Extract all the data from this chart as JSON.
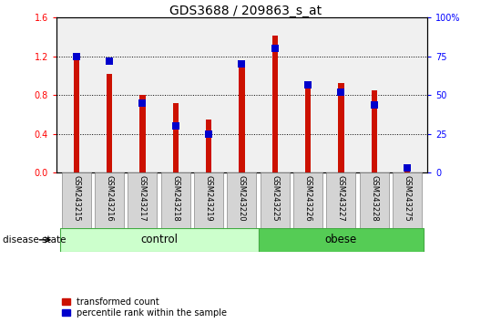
{
  "title": "GDS3688 / 209863_s_at",
  "samples": [
    "GSM243215",
    "GSM243216",
    "GSM243217",
    "GSM243218",
    "GSM243219",
    "GSM243220",
    "GSM243225",
    "GSM243226",
    "GSM243227",
    "GSM243228",
    "GSM243275"
  ],
  "transformed_count": [
    1.22,
    1.02,
    0.8,
    0.72,
    0.55,
    1.12,
    1.42,
    0.95,
    0.93,
    0.85,
    0.02
  ],
  "percentile_rank": [
    75,
    72,
    45,
    30,
    25,
    70,
    80,
    57,
    52,
    44,
    3
  ],
  "groups": [
    {
      "label": "control",
      "start": 0,
      "end": 6,
      "color": "#ccffcc",
      "edge": "#44aa44"
    },
    {
      "label": "obese",
      "start": 6,
      "end": 11,
      "color": "#55cc55",
      "edge": "#44aa44"
    }
  ],
  "bar_color_red": "#cc1100",
  "bar_color_blue": "#0000cc",
  "ylim_left": [
    0,
    1.6
  ],
  "ylim_right": [
    0,
    100
  ],
  "yticks_left": [
    0,
    0.4,
    0.8,
    1.2,
    1.6
  ],
  "yticks_right": [
    0,
    25,
    50,
    75,
    100
  ],
  "ytick_labels_right": [
    "0",
    "25",
    "50",
    "75",
    "100%"
  ],
  "background_color": "#ffffff",
  "plot_bg_color": "#f0f0f0",
  "label_red": "transformed count",
  "label_blue": "percentile rank within the sample",
  "disease_state_label": "disease state",
  "title_fontsize": 10,
  "tick_fontsize": 7,
  "bar_linewidth": 3.5,
  "blue_marker_size": 6
}
